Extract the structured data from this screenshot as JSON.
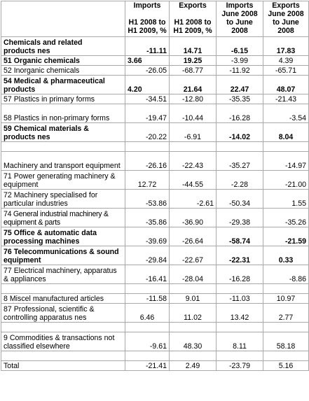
{
  "headers": [
    "",
    "Imports\nH1 2008 to\nH1 2009, %",
    "Exports\nH1 2008 to\nH1 2009, %",
    "Imports\nJune 2008\nto June\n2008",
    "Exports\nJune 2008\nto June\n2008"
  ],
  "header_lines": {
    "imp_h1": [
      "Imports",
      "",
      "H1 2008 to",
      "H1 2009, %"
    ],
    "exp_h1": [
      "Exports",
      "",
      "H1 2008 to",
      "H1 2009, %"
    ],
    "imp_jun": [
      "Imports",
      "June 2008",
      "to June",
      "2008"
    ],
    "exp_jun": [
      "Exports",
      "June 2008",
      "to June",
      "2008"
    ]
  },
  "rows": [
    {
      "label": "Chemicals and related products nes",
      "v": [
        "-11.11",
        "14.71",
        "-6.15",
        "17.83"
      ]
    },
    {
      "label": "51 Organic chemicals",
      "v": [
        "3.66",
        "19.25",
        "-3.99",
        "4.39"
      ]
    },
    {
      "label": "52 Inorganic chemicals",
      "v": [
        "-26.05",
        "-68.77",
        "-11.92",
        "-65.71"
      ]
    },
    {
      "label": "54 Medical & pharmaceutical products",
      "v": [
        "4.20",
        "21.64",
        "22.47",
        "48.07"
      ]
    },
    {
      "label": "57 Plastics in primary forms",
      "v": [
        "-34.51",
        "-12.80",
        "-35.35",
        "-21.43"
      ]
    },
    {
      "label": "58 Plastics in non-primary forms",
      "v": [
        "-19.47",
        "-10.44",
        "-16.28",
        "-3.54"
      ]
    },
    {
      "label": "59 Chemical materials & products nes",
      "v": [
        "-20.22",
        "-6.91",
        "-14.02",
        "8.04"
      ]
    },
    {
      "label": "Machinery and transport equipment",
      "v": [
        "-26.16",
        "-22.43",
        "-35.27",
        "-14.97"
      ]
    },
    {
      "label": "71 Power generating machinery & equipment",
      "v": [
        "12.72",
        "-44.55",
        "-2.28",
        "-21.00"
      ]
    },
    {
      "label": "72 Machinery specialised for particular industries",
      "v": [
        "-53.86",
        "-2.61",
        "-50.34",
        "1.55"
      ]
    },
    {
      "label": "74 General industrial machinery & equipment & parts",
      "v": [
        "-35.86",
        "-36.90",
        "-29.38",
        "-35.26"
      ]
    },
    {
      "label": "75 Office & automatic data processing machines",
      "v": [
        "-39.69",
        "-26.64",
        "-58.74",
        "-21.59"
      ]
    },
    {
      "label": "76 Telecommunications & sound equipment",
      "v": [
        "-29.84",
        "-22.67",
        "-22.31",
        "0.33"
      ]
    },
    {
      "label": "77 Electrical machinery, apparatus & appliances",
      "v": [
        "-16.41",
        "-28.04",
        "-16.28",
        "-8.86"
      ]
    },
    {
      "label": "8 Miscel manufactured articles",
      "v": [
        "-11.58",
        "9.01",
        "-11.03",
        "10.97"
      ]
    },
    {
      "label": "87 Professional, scientific & controlling apparatus nes",
      "v": [
        "6.46",
        "11.02",
        "13.42",
        "2.77"
      ]
    },
    {
      "label": "9 Commodities & transactions not classified elsewhere",
      "v": [
        "-9.61",
        "48.30",
        "8.11",
        "58.18"
      ]
    },
    {
      "label": "Total",
      "v": [
        "-21.41",
        "2.49",
        "-23.79",
        "5.16"
      ]
    }
  ],
  "text": {
    "chem_a": "Chemicals and related",
    "chem_b": "products ",
    "chem_nes": "nes",
    "r59_a": "59 Chemical materials &",
    "r59_b": "products ",
    "r59_nes": "nes",
    "r8_a": "8 ",
    "r8_miscel": "Miscel",
    "r8_b": " manufactured articles",
    "r87_a": "87 Professional, scientific &",
    "r87_b": "controlling apparatus ",
    "r87_nes": "nes"
  }
}
